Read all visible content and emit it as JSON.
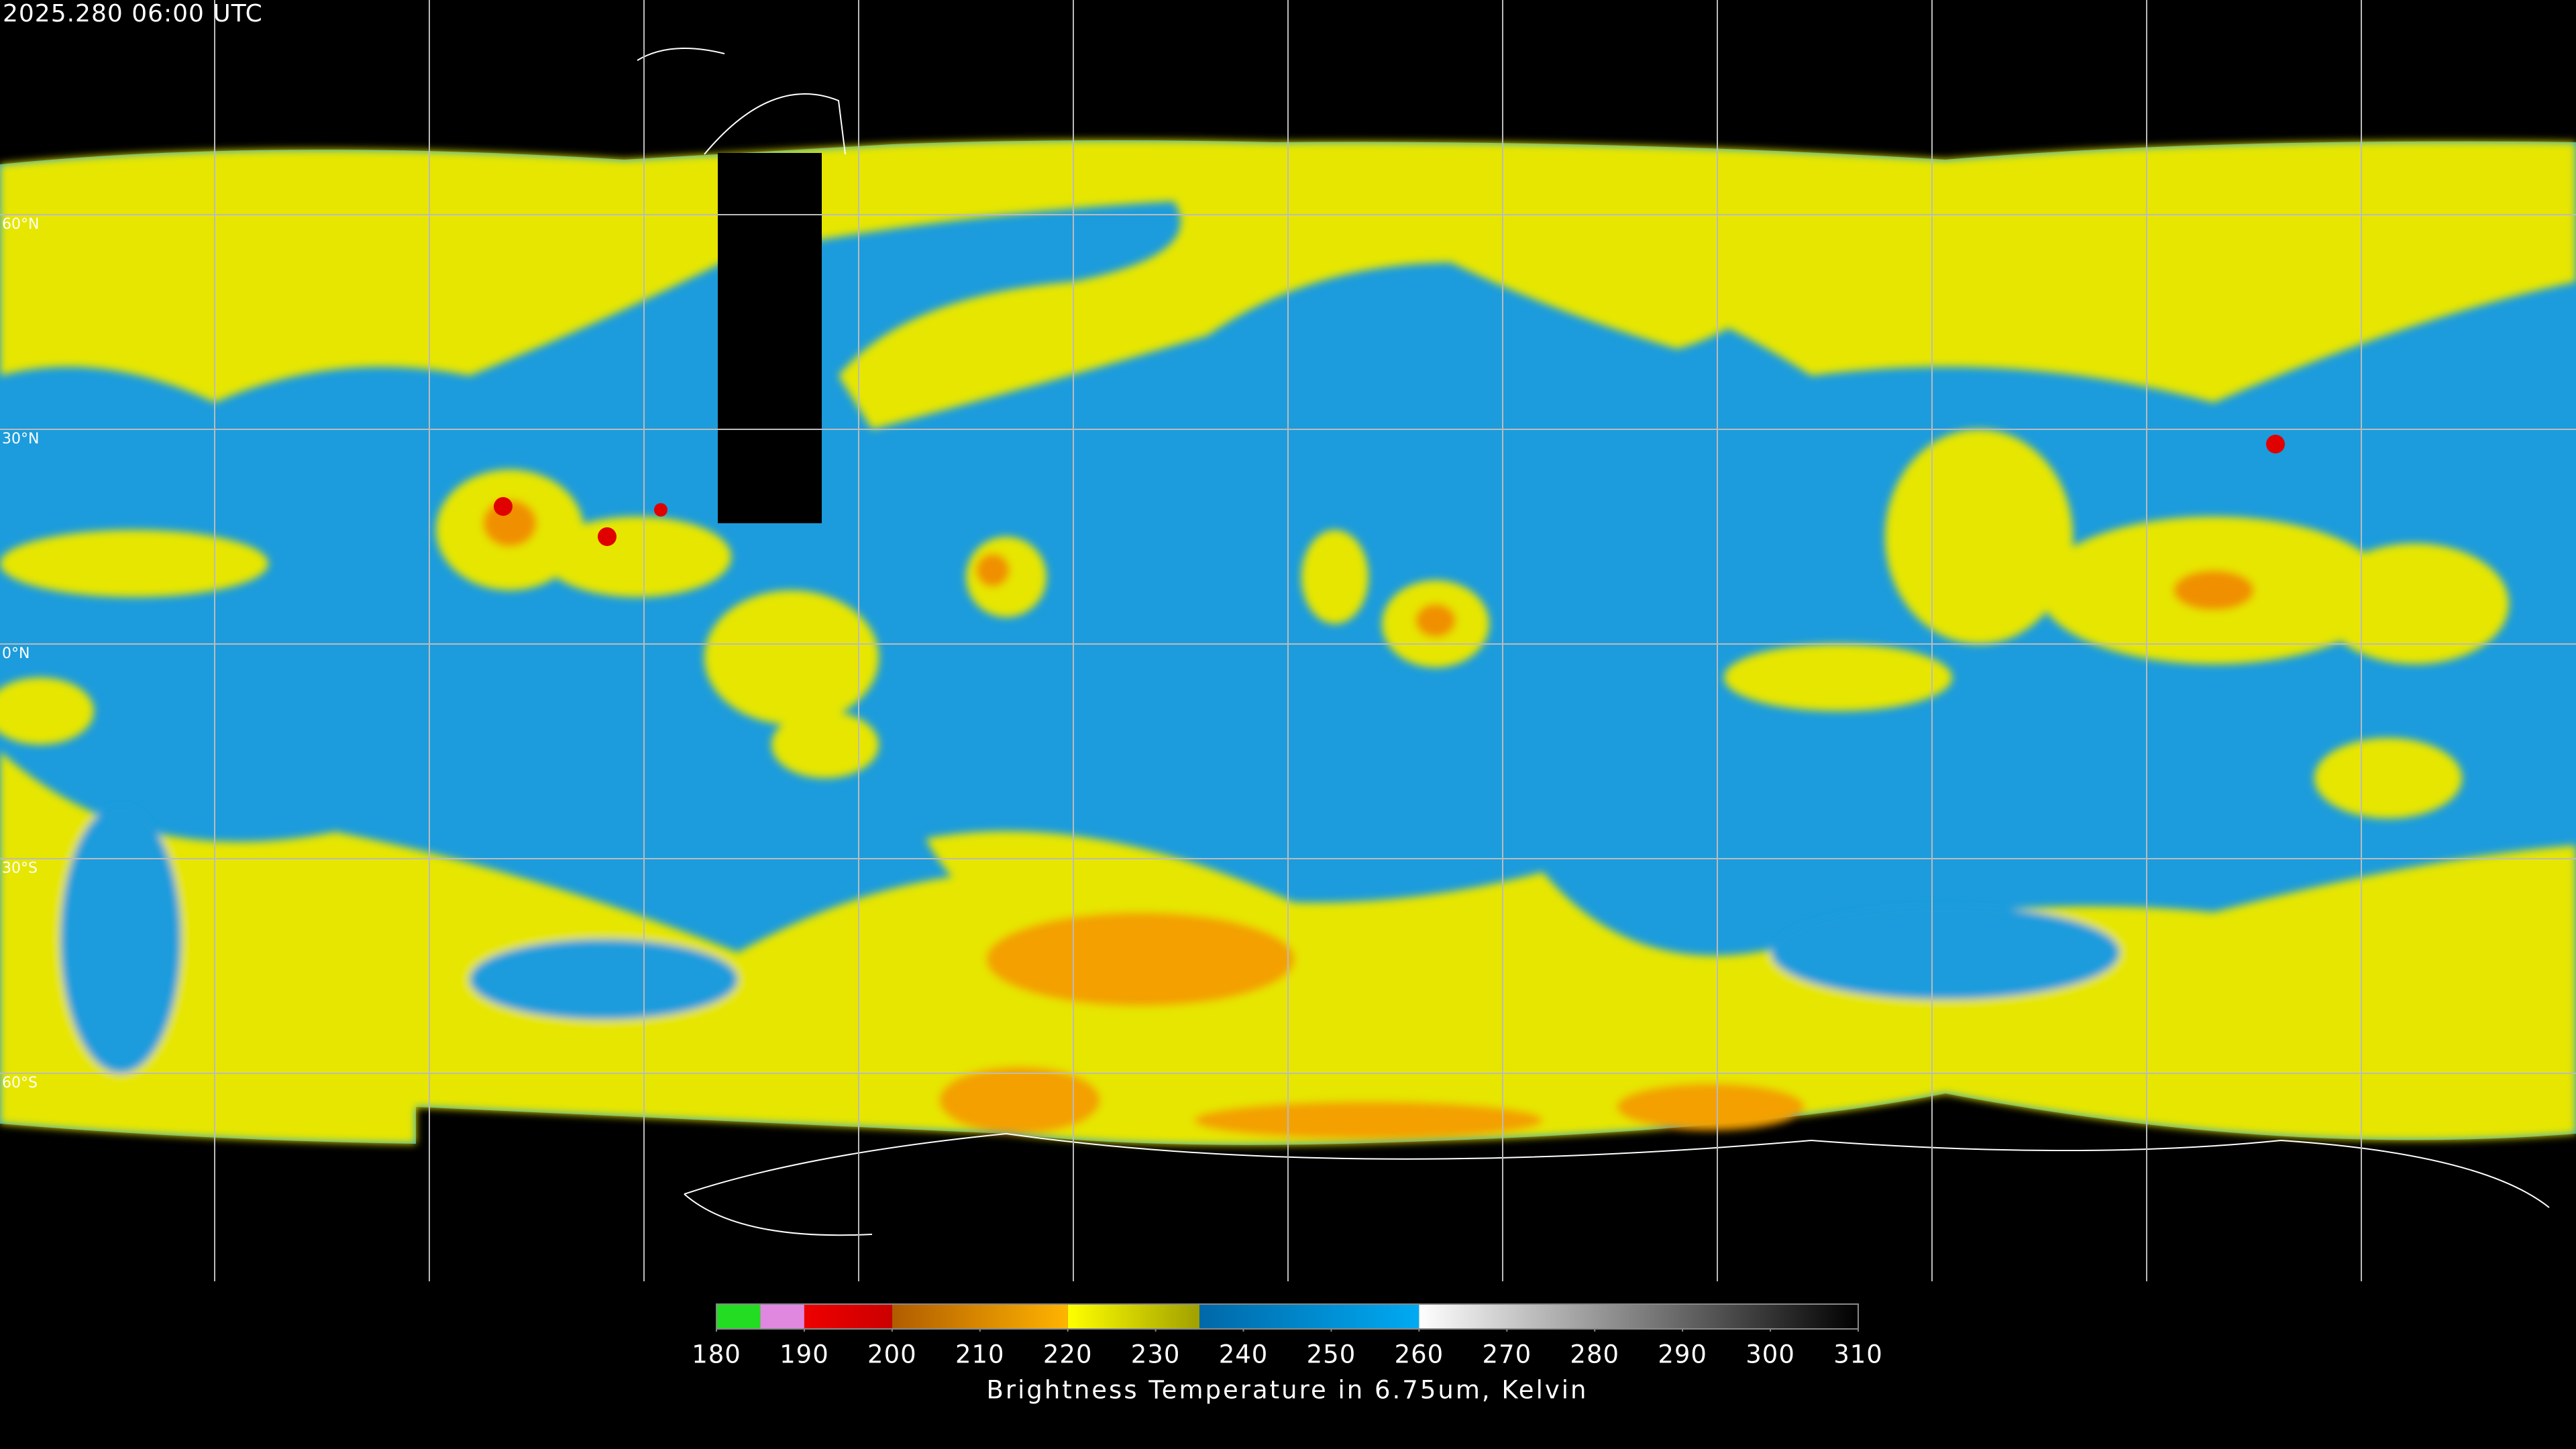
{
  "timestamp": "2025.280 06:00 UTC",
  "latitude_labels": [
    "60°N",
    "30°N",
    "0°N",
    "30°S",
    "60°S"
  ],
  "colorbar": {
    "title": "Brightness Temperature in 6.75um, Kelvin",
    "lim": [
      180,
      310
    ],
    "ticks": [
      180,
      190,
      200,
      210,
      220,
      230,
      240,
      250,
      260,
      270,
      280,
      290,
      300,
      310
    ],
    "segments": [
      {
        "range": [
          180,
          185
        ],
        "colors": [
          "#22dd22",
          "#22dd22"
        ]
      },
      {
        "range": [
          185,
          190
        ],
        "colors": [
          "#e088e0",
          "#e088e0"
        ]
      },
      {
        "range": [
          190,
          200
        ],
        "colors": [
          "#ee0000",
          "#cc0000"
        ]
      },
      {
        "range": [
          200,
          220
        ],
        "colors": [
          "#b05c00",
          "#ffb400"
        ]
      },
      {
        "range": [
          220,
          235
        ],
        "colors": [
          "#ffff00",
          "#a0a000"
        ]
      },
      {
        "range": [
          235,
          260
        ],
        "colors": [
          "#0068a8",
          "#00aaf2"
        ]
      },
      {
        "range": [
          260,
          310
        ],
        "colors": [
          "#ffffff",
          "#000000"
        ]
      }
    ]
  }
}
